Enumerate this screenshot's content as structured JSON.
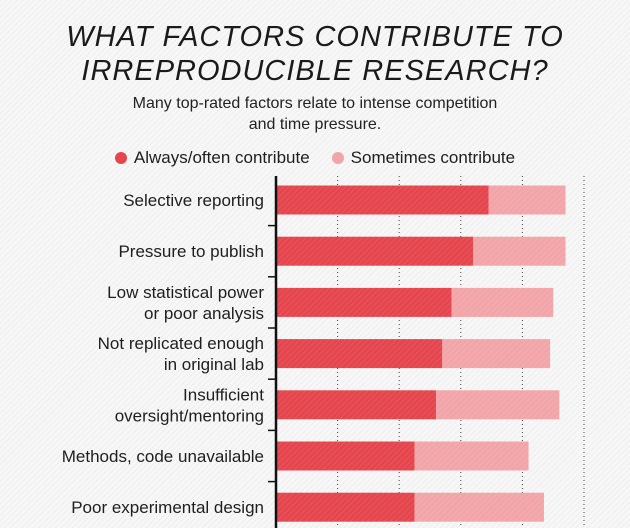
{
  "title_lines": [
    "WHAT FACTORS CONTRIBUTE TO",
    "IRREPRODUCIBLE RESEARCH?"
  ],
  "subtitle_lines": [
    "Many top-rated factors relate to intense competition",
    "and time pressure."
  ],
  "legend": [
    {
      "label": "Always/often contribute",
      "color": "#e5454d"
    },
    {
      "label": "Sometimes contribute",
      "color": "#f2a5a8"
    }
  ],
  "chart_data": {
    "type": "bar",
    "orientation": "horizontal",
    "stacked": true,
    "title": "WHAT FACTORS CONTRIBUTE TO IRREPRODUCIBLE RESEARCH?",
    "subtitle": "Many top-rated factors relate to intense competition and time pressure.",
    "categories": [
      [
        "Selective reporting"
      ],
      [
        "Pressure to publish"
      ],
      [
        "Low statistical power",
        "or poor analysis"
      ],
      [
        "Not replicated enough",
        "in original lab"
      ],
      [
        "Insufficient",
        "oversight/mentoring"
      ],
      [
        "Methods, code unavailable"
      ],
      [
        "Poor experimental design"
      ]
    ],
    "series": [
      {
        "name": "Always/often contribute",
        "color": "#e5454d",
        "values": [
          69,
          64,
          57,
          54,
          52,
          45,
          45
        ]
      },
      {
        "name": "Sometimes contribute",
        "color": "#f2a5a8",
        "values": [
          25,
          30,
          33,
          35,
          40,
          37,
          42
        ]
      }
    ],
    "xlim": [
      0,
      100
    ],
    "grid": true,
    "legend_position": "top"
  }
}
